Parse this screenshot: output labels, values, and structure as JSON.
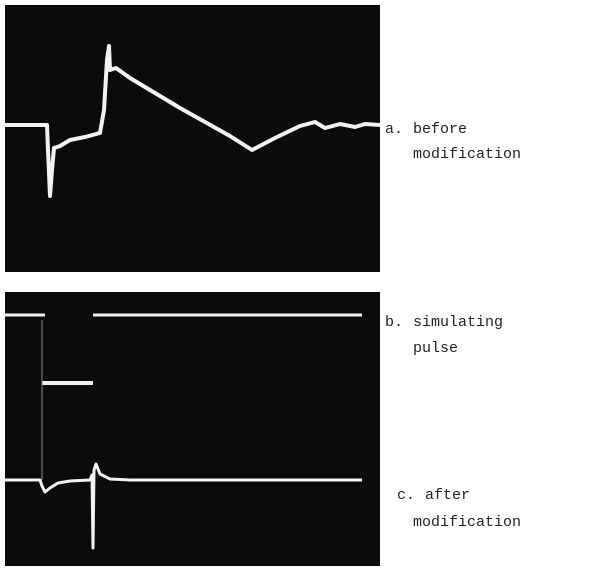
{
  "labels": [
    {
      "marker": "a.",
      "lines": [
        "before",
        "modification"
      ]
    },
    {
      "marker": "b.",
      "lines": [
        "simulating",
        "pulse"
      ]
    },
    {
      "marker": "c.",
      "lines": [
        "after",
        "modification"
      ]
    }
  ]
}
